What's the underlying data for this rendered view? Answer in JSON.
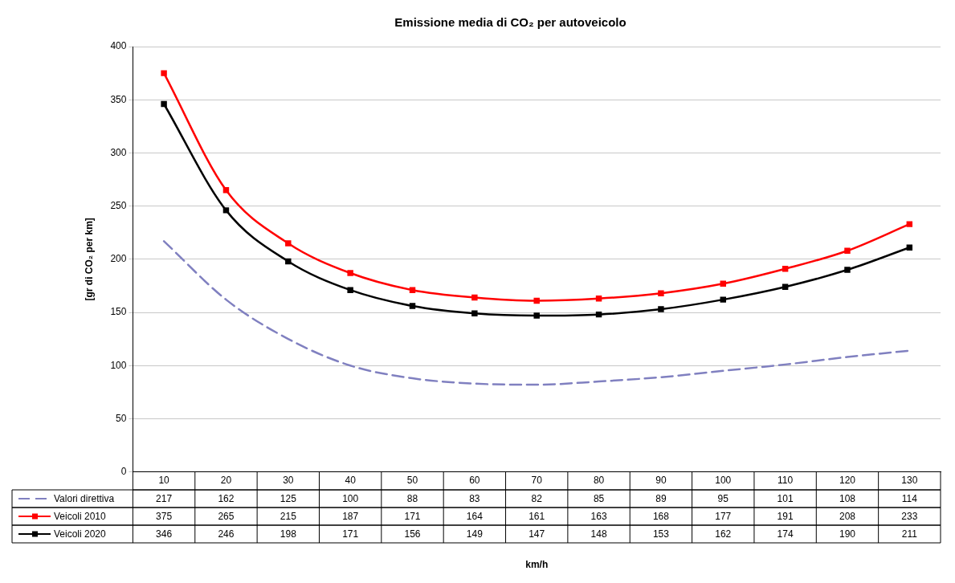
{
  "chart_data": {
    "type": "line",
    "title": "Emissione media di CO₂ per autoveicolo",
    "annotations": [
      "km/h"
    ],
    "ylabel": "[gr di CO₂ per km]",
    "categories": [
      "10",
      "20",
      "30",
      "40",
      "50",
      "60",
      "70",
      "80",
      "90",
      "100",
      "110",
      "120",
      "130"
    ],
    "series": [
      {
        "name": "Valori direttiva",
        "color": "#8080c0",
        "line_style": "dashed",
        "marker": "none",
        "values": [
          217,
          162,
          125,
          100,
          88,
          83,
          82,
          85,
          89,
          95,
          101,
          108,
          114
        ]
      },
      {
        "name": "Veicoli 2010",
        "color": "#ff0000",
        "values": [
          375,
          265,
          215,
          187,
          171,
          164,
          161,
          163,
          168,
          177,
          191,
          208,
          233
        ]
      },
      {
        "name": "Veicoli 2020",
        "color": "#000000",
        "values": [
          346,
          246,
          198,
          171,
          156,
          149,
          147,
          148,
          153,
          162,
          174,
          190,
          211
        ]
      }
    ],
    "ylim": [
      0,
      400
    ],
    "yticks": [
      0,
      50,
      100,
      150,
      200,
      250,
      300,
      350,
      400
    ],
    "grid": "y",
    "legend": "bottom",
    "marker": "square",
    "line_style": "solid",
    "data_labels": true
  }
}
